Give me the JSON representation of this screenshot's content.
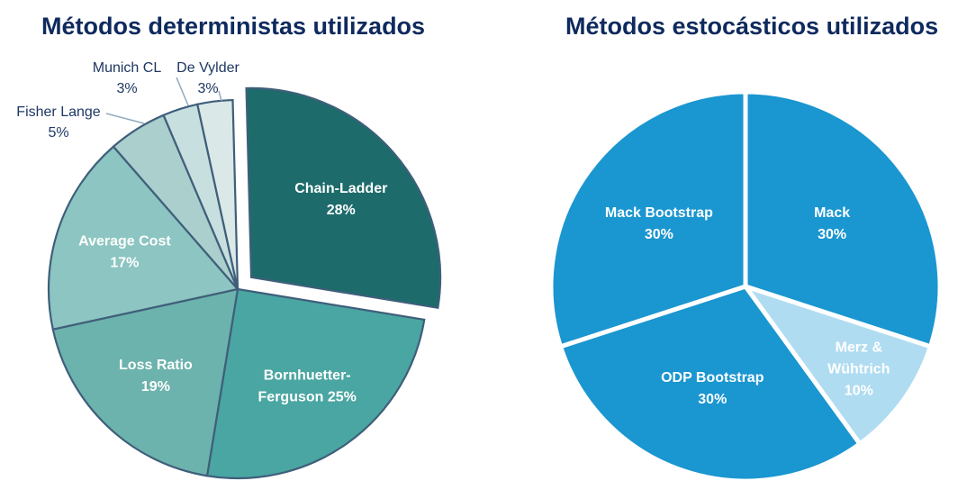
{
  "chart_data": [
    {
      "type": "pie",
      "title": "Métodos deterministas utilizados",
      "slices": [
        {
          "name": "Chain-Ladder",
          "value": 28,
          "label_lines": [
            "Chain-Ladder",
            "28%"
          ],
          "color": "#1d6b6b",
          "exploded": true,
          "label_inside": true
        },
        {
          "name": "Bornhuetter-Ferguson",
          "value": 25,
          "label_lines": [
            "Bornhuetter-",
            "Ferguson 25%"
          ],
          "color": "#4aa6a2",
          "exploded": false,
          "label_inside": true
        },
        {
          "name": "Loss Ratio",
          "value": 19,
          "label_lines": [
            "Loss Ratio",
            "19%"
          ],
          "color": "#6db3ad",
          "exploded": false,
          "label_inside": true
        },
        {
          "name": "Average Cost",
          "value": 17,
          "label_lines": [
            "Average Cost",
            "17%"
          ],
          "color": "#8cc5c1",
          "exploded": false,
          "label_inside": true
        },
        {
          "name": "Fisher Lange",
          "value": 5,
          "label_lines": [
            "Fisher Lange",
            "5%"
          ],
          "color": "#abcfcd",
          "exploded": false,
          "label_inside": false
        },
        {
          "name": "Munich CL",
          "value": 3,
          "label_lines": [
            "Munich CL",
            "3%"
          ],
          "color": "#c8dfdf",
          "exploded": false,
          "label_inside": false
        },
        {
          "name": "De Vylder",
          "value": 3,
          "label_lines": [
            "De Vylder",
            "3%"
          ],
          "color": "#dbe8e8",
          "exploded": false,
          "label_inside": false
        }
      ]
    },
    {
      "type": "pie",
      "title": "Métodos estocásticos utilizados",
      "slices": [
        {
          "name": "Mack",
          "value": 30,
          "label_lines": [
            "Mack",
            "30%"
          ],
          "color": "#1a96d0",
          "exploded": false,
          "label_inside": true
        },
        {
          "name": "Merz & Wühtrich",
          "value": 10,
          "label_lines": [
            "Merz &",
            "Wühtrich",
            "10%"
          ],
          "color": "#b0dcf1",
          "exploded": false,
          "label_inside": true
        },
        {
          "name": "ODP Bootstrap",
          "value": 30,
          "label_lines": [
            "ODP Bootstrap",
            "30%"
          ],
          "color": "#1a96d0",
          "exploded": false,
          "label_inside": true
        },
        {
          "name": "Mack Bootstrap",
          "value": 30,
          "label_lines": [
            "Mack Bootstrap",
            "30%"
          ],
          "color": "#1a96d0",
          "exploded": false,
          "label_inside": true
        }
      ]
    }
  ]
}
